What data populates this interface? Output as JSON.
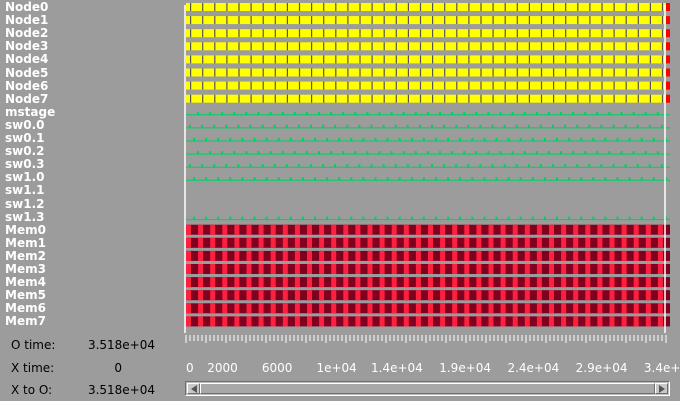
{
  "rows": [
    {
      "label": "Node0",
      "type": "node"
    },
    {
      "label": "Node1",
      "type": "node"
    },
    {
      "label": "Node2",
      "type": "node"
    },
    {
      "label": "Node3",
      "type": "node"
    },
    {
      "label": "Node4",
      "type": "node"
    },
    {
      "label": "Node5",
      "type": "node"
    },
    {
      "label": "Node6",
      "type": "node"
    },
    {
      "label": "Node7",
      "type": "node"
    },
    {
      "label": "mstage",
      "type": "signal"
    },
    {
      "label": "sw0.0",
      "type": "signal"
    },
    {
      "label": "sw0.1",
      "type": "signal"
    },
    {
      "label": "sw0.2",
      "type": "signal"
    },
    {
      "label": "sw0.3",
      "type": "signal"
    },
    {
      "label": "sw1.0",
      "type": "signal"
    },
    {
      "label": "sw1.1",
      "type": "empty"
    },
    {
      "label": "sw1.2",
      "type": "empty"
    },
    {
      "label": "sw1.3",
      "type": "signal"
    },
    {
      "label": "Mem0",
      "type": "mem"
    },
    {
      "label": "Mem1",
      "type": "mem"
    },
    {
      "label": "Mem2",
      "type": "mem"
    },
    {
      "label": "Mem3",
      "type": "mem"
    },
    {
      "label": "Mem4",
      "type": "mem"
    },
    {
      "label": "Mem5",
      "type": "mem"
    },
    {
      "label": "Mem6",
      "type": "mem"
    },
    {
      "label": "Mem7",
      "type": "mem"
    }
  ],
  "info": {
    "o_time_label": "O time:",
    "o_time_value": "3.518e+04",
    "x_time_label": "X time:",
    "x_time_value": "0",
    "x_to_o_label": "X to O:",
    "x_to_o_value": "3.518e+04"
  },
  "axis": {
    "max": 35180,
    "ticks": [
      {
        "value": 0,
        "label": "0"
      },
      {
        "value": 2000,
        "label": "2000"
      },
      {
        "value": 6000,
        "label": "6000"
      },
      {
        "value": 10000,
        "label": "1e+04"
      },
      {
        "value": 14000,
        "label": "1.4e+04"
      },
      {
        "value": 19000,
        "label": "1.9e+04"
      },
      {
        "value": 24000,
        "label": "2.4e+04"
      },
      {
        "value": 29000,
        "label": "2.9e+04"
      },
      {
        "value": 34000,
        "label": "3.4e+04"
      }
    ]
  },
  "colors": {
    "background": "#9c9c9c",
    "node_fill": "#ffff00",
    "node_divider": "#555555",
    "node_end": "#ff0000",
    "signal": "#00d060",
    "mem_dark": "#800020",
    "mem_light": "#ff2040",
    "cursor": "#ffffff"
  },
  "scrollbar": {
    "left_icon": "arrow-left-icon",
    "right_icon": "arrow-right-icon"
  }
}
